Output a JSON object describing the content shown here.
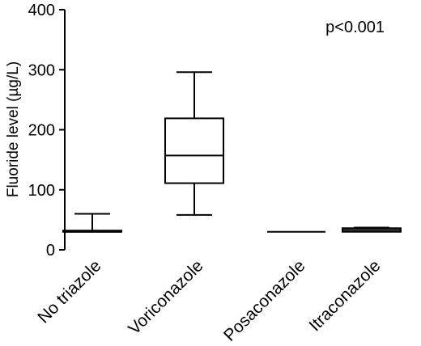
{
  "chart_data": {
    "type": "box",
    "ylabel": "Fluoride level (µg/L)",
    "ylim": [
      0,
      400
    ],
    "yticks": [
      0,
      100,
      200,
      300,
      400
    ],
    "annotation": "p<0.001",
    "annotation_position": "top-right",
    "grid": false,
    "legend": "none",
    "categories": [
      "No triazole",
      "Voriconazole",
      "Posaconazole",
      "Itraconazole"
    ],
    "boxes": [
      {
        "category": "No triazole",
        "min": 30,
        "q1": 30,
        "median": 30,
        "q3": 32,
        "max": 60
      },
      {
        "category": "Voriconazole",
        "min": 58,
        "q1": 111,
        "median": 157,
        "q3": 219,
        "max": 296
      },
      {
        "category": "Posaconazole",
        "min": 30,
        "q1": 30,
        "median": 30,
        "q3": 30,
        "max": 30
      },
      {
        "category": "Itraconazole",
        "min": 30,
        "q1": 30,
        "median": 33,
        "q3": 36,
        "max": 37
      }
    ]
  }
}
